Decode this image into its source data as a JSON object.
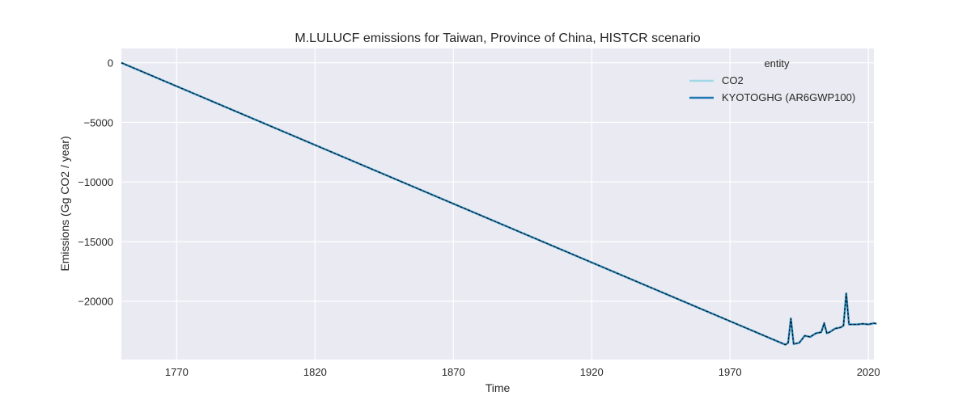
{
  "chart_data": {
    "type": "line",
    "title": "M.LULUCF emissions for Taiwan, Province of China, HISTCR scenario",
    "xlabel": "Time",
    "ylabel": "Emissions (Gg CO2 / year)",
    "xlim": [
      1750,
      2022
    ],
    "ylim": [
      -24900,
      1200
    ],
    "x_ticks": [
      1770,
      1820,
      1870,
      1920,
      1970,
      2020
    ],
    "y_ticks": [
      0,
      -5000,
      -10000,
      -15000,
      -20000
    ],
    "grid": true,
    "legend": {
      "title": "entity",
      "placement": "top-right"
    },
    "series": [
      {
        "name": "CO2",
        "color": "#9fd8e6",
        "style": "solid",
        "points": [
          [
            1750,
            0
          ],
          [
            1990,
            -23650
          ],
          [
            1991,
            -23500
          ],
          [
            1992,
            -21450
          ],
          [
            1993,
            -23600
          ],
          [
            1995,
            -23500
          ],
          [
            1997,
            -22900
          ],
          [
            1999,
            -23000
          ],
          [
            2001,
            -22700
          ],
          [
            2003,
            -22600
          ],
          [
            2004,
            -21850
          ],
          [
            2005,
            -22700
          ],
          [
            2006,
            -22600
          ],
          [
            2008,
            -22300
          ],
          [
            2010,
            -22200
          ],
          [
            2011,
            -22050
          ],
          [
            2012,
            -19350
          ],
          [
            2013,
            -21950
          ],
          [
            2016,
            -21950
          ],
          [
            2018,
            -21900
          ],
          [
            2020,
            -21950
          ],
          [
            2022,
            -21850
          ],
          [
            2023,
            -21900
          ]
        ]
      },
      {
        "name": "KYOTOGHG (AR6GWP100)",
        "color": "#1f77b4",
        "style": "solid",
        "points": [
          [
            1750,
            0
          ],
          [
            1990,
            -23650
          ],
          [
            1991,
            -23500
          ],
          [
            1992,
            -21450
          ],
          [
            1993,
            -23600
          ],
          [
            1995,
            -23500
          ],
          [
            1997,
            -22900
          ],
          [
            1999,
            -23000
          ],
          [
            2001,
            -22700
          ],
          [
            2003,
            -22600
          ],
          [
            2004,
            -21850
          ],
          [
            2005,
            -22700
          ],
          [
            2006,
            -22600
          ],
          [
            2008,
            -22300
          ],
          [
            2010,
            -22200
          ],
          [
            2011,
            -22050
          ],
          [
            2012,
            -19350
          ],
          [
            2013,
            -21950
          ],
          [
            2016,
            -21950
          ],
          [
            2018,
            -21900
          ],
          [
            2020,
            -21950
          ],
          [
            2022,
            -21850
          ],
          [
            2023,
            -21900
          ]
        ]
      }
    ]
  }
}
